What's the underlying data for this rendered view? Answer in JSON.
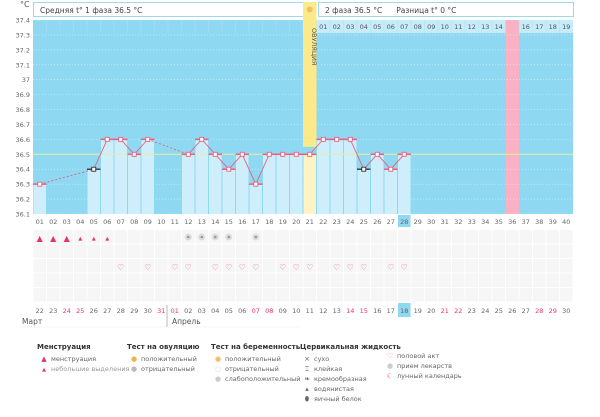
{
  "header": {
    "unit": "°C",
    "phase1": "Средняя t° 1 фаза 36.5 °C",
    "phase2": "2 фаза 36.5 °C",
    "difference": "Разница t° 0 °C",
    "ovulation_label": "ОВУЛЯЦИЯ"
  },
  "colors": {
    "bg": "#8fd8f2",
    "bar": "#cdeefa",
    "line": "#e8607f",
    "ovulation": "#fbe98a",
    "pink": "#f9b1c3",
    "average": "#e9ef9a",
    "weekend": "#e8336a"
  },
  "chart_data": {
    "type": "line",
    "ylim": [
      36.1,
      37.4
    ],
    "yticks": [
      "37.4",
      "37.3",
      "37.2",
      "37.1",
      "37",
      "36.9",
      "36.8",
      "36.7",
      "36.6",
      "36.5",
      "36.4",
      "36.3",
      "36.2",
      "36.1"
    ],
    "cycle_days": [
      "01",
      "02",
      "03",
      "04",
      "05",
      "06",
      "07",
      "08",
      "09",
      "10",
      "11",
      "12",
      "13",
      "14",
      "15",
      "16",
      "17",
      "18",
      "19",
      "20",
      "21",
      "22",
      "23",
      "24",
      "25",
      "26",
      "27",
      "28",
      "29",
      "30",
      "31",
      "32",
      "33",
      "34",
      "35",
      "36",
      "37",
      "38",
      "39",
      "40"
    ],
    "temperatures": [
      36.3,
      null,
      null,
      null,
      36.4,
      36.6,
      36.6,
      36.5,
      36.6,
      null,
      null,
      36.5,
      36.6,
      36.5,
      36.4,
      36.5,
      36.3,
      36.5,
      36.5,
      36.5,
      36.5,
      36.6,
      36.6,
      36.6,
      36.4,
      36.5,
      36.4,
      36.5
    ],
    "excluded_points": [
      5,
      25
    ],
    "average": 36.5,
    "ovulation_day": 21,
    "current_day": 28,
    "next_cycle_start_day": 36,
    "next_cycle_days": [
      "01",
      "02",
      "03",
      "04",
      "05",
      "06",
      "07",
      "08",
      "09",
      "10",
      "11",
      "12",
      "13",
      "14",
      "15",
      "16",
      "17",
      "18",
      "19"
    ]
  },
  "dates": [
    "22",
    "23",
    "24",
    "25",
    "26",
    "27",
    "28",
    "29",
    "30",
    "31",
    "01",
    "02",
    "03",
    "04",
    "05",
    "06",
    "07",
    "08",
    "09",
    "10",
    "11",
    "12",
    "13",
    "14",
    "15",
    "16",
    "17",
    "18",
    "19",
    "20",
    "21",
    "22",
    "23",
    "24",
    "25",
    "26",
    "27",
    "28",
    "29",
    "30"
  ],
  "weekend_cols": [
    3,
    4,
    10,
    11,
    17,
    18,
    24,
    25,
    31,
    32,
    38,
    39
  ],
  "today_col": 28,
  "months": [
    "Март",
    "Апрель"
  ],
  "menstruation": {
    "heavy": [
      1,
      2,
      3
    ],
    "light": [
      4,
      5,
      6
    ]
  },
  "ovulation_test_negative": [
    12,
    13,
    14,
    15,
    17
  ],
  "intercourse": [
    7,
    9,
    11,
    12,
    14,
    15,
    16,
    17,
    19,
    20,
    21,
    23,
    24,
    25,
    27,
    28
  ],
  "legend": {
    "menstruation": {
      "title": "Менструация",
      "items": [
        "менструация",
        "небольшие выделения"
      ]
    },
    "ovulation_test": {
      "title": "Тест на овуляцию",
      "items": [
        "положительный",
        "отрицательный"
      ]
    },
    "pregnancy_test": {
      "title": "Тест на беременность",
      "items": [
        "положительный",
        "отрицательный",
        "слабоположительный"
      ]
    },
    "cervical": {
      "title": "Цервикальная жидкость",
      "items": [
        "сухо",
        "клейкая",
        "кремообразная",
        "водянистая",
        "яичный белок"
      ]
    },
    "other": {
      "items": [
        "половой акт",
        "прием лекарств",
        "лунный календарь"
      ]
    }
  }
}
